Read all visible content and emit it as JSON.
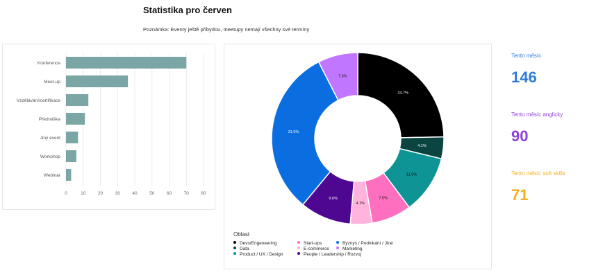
{
  "header": {
    "title": "Statistika pro červen",
    "note": "Poznámka: Eventy ještě přibydou, meetupy nemají všechny své termíny"
  },
  "kpis": [
    {
      "label": "Tento měsíc",
      "value": "146",
      "color": "#2f7bd9"
    },
    {
      "label": "Tento měsíc anglicky",
      "value": "90",
      "color": "#8f3fe0"
    },
    {
      "label": "Tento měsíc soft skills",
      "value": "71",
      "color": "#f2b01e"
    }
  ],
  "chart_data": [
    {
      "type": "bar",
      "orientation": "horizontal",
      "categories": [
        "Konference",
        "Meet-up",
        "Vzdělávání/certifikace",
        "Přednáška",
        "Jiný event",
        "Workshop",
        "Webinar"
      ],
      "values": [
        70,
        36,
        13,
        11,
        7,
        6,
        3
      ],
      "xlim": [
        0,
        80
      ],
      "xticks": [
        "0",
        "10",
        "20",
        "30",
        "40",
        "50",
        "60",
        "70",
        "80"
      ],
      "color": "#7aa6a6",
      "grid": true
    },
    {
      "type": "pie",
      "donut": true,
      "legend_title": "Oblast",
      "legend_position": "bottom-left",
      "slices": [
        {
          "name": "Devs/Engeneering",
          "value": 24.7,
          "label": "24.7%",
          "color": "#000000"
        },
        {
          "name": "Data",
          "value": 4.1,
          "label": "4.1%",
          "color": "#0b4440"
        },
        {
          "name": "Product / UX / Design",
          "value": 11.0,
          "label": "11.0%",
          "color": "#0e9494"
        },
        {
          "name": "Start-ups",
          "value": 7.5,
          "label": "7.5%",
          "color": "#ff6fbf"
        },
        {
          "name": "E-commerce",
          "value": 4.1,
          "label": "4.1%",
          "color": "#ffb3dd"
        },
        {
          "name": "People / Leadership / Rozvoj",
          "value": 9.6,
          "label": "9.6%",
          "color": "#4e0791"
        },
        {
          "name": "Byznys / Podnikání / Jiné",
          "value": 31.5,
          "label": "31.5%",
          "color": "#0b6ee0"
        },
        {
          "name": "Marketing",
          "value": 7.5,
          "label": "7.5%",
          "color": "#c176ff"
        }
      ]
    }
  ]
}
